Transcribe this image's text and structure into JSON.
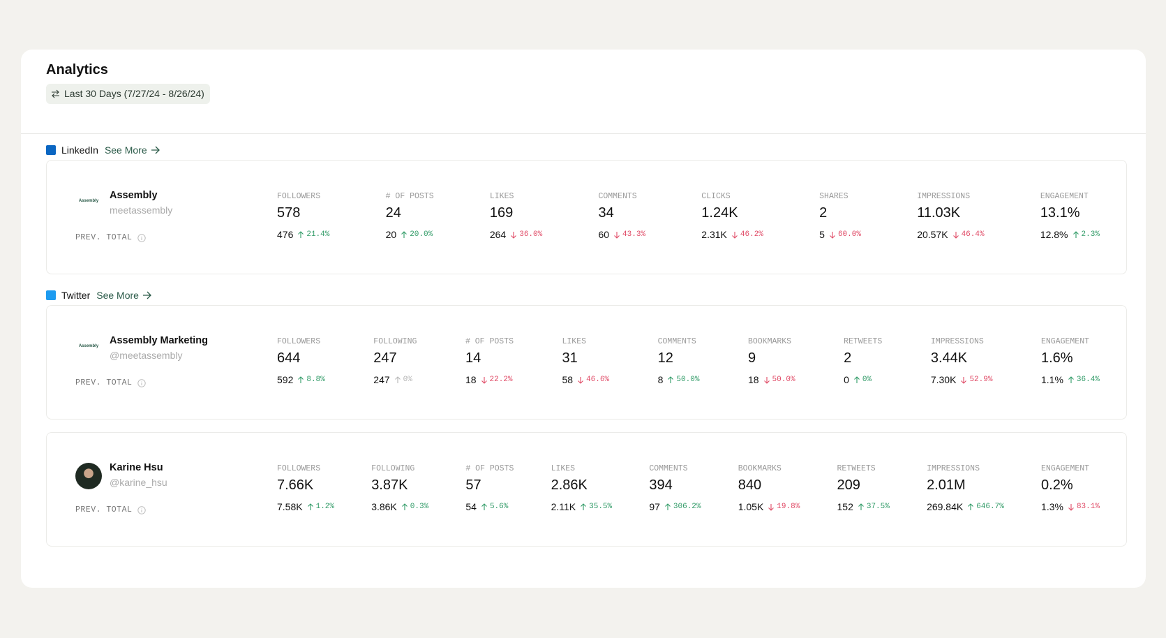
{
  "header": {
    "title": "Analytics",
    "date_range": "Last 30 Days (7/27/24 - 8/26/24)"
  },
  "sections": [
    {
      "platform": "LinkedIn",
      "link": "See More",
      "accounts": [
        {
          "name": "Assembly",
          "handle": "meetassembly",
          "logo": "Assembly",
          "prev_label": "PREV. TOTAL",
          "metrics": [
            {
              "label": "FOLLOWERS",
              "value": "578",
              "prev": "476",
              "change": "21.4%",
              "trend": "up"
            },
            {
              "label": "# OF POSTS",
              "value": "24",
              "prev": "20",
              "change": "20.0%",
              "trend": "up"
            },
            {
              "label": "LIKES",
              "value": "169",
              "prev": "264",
              "change": "36.0%",
              "trend": "down"
            },
            {
              "label": "COMMENTS",
              "value": "34",
              "prev": "60",
              "change": "43.3%",
              "trend": "down"
            },
            {
              "label": "CLICKS",
              "value": "1.24K",
              "prev": "2.31K",
              "change": "46.2%",
              "trend": "down"
            },
            {
              "label": "SHARES",
              "value": "2",
              "prev": "5",
              "change": "60.0%",
              "trend": "down"
            },
            {
              "label": "IMPRESSIONS",
              "value": "11.03K",
              "prev": "20.57K",
              "change": "46.4%",
              "trend": "down"
            },
            {
              "label": "ENGAGEMENT",
              "value": "13.1%",
              "prev": "12.8%",
              "change": "2.3%",
              "trend": "up"
            }
          ]
        }
      ]
    },
    {
      "platform": "Twitter",
      "link": "See More",
      "accounts": [
        {
          "name": "Assembly Marketing",
          "handle": "@meetassembly",
          "logo": "Assembly",
          "prev_label": "PREV. TOTAL",
          "metrics": [
            {
              "label": "FOLLOWERS",
              "value": "644",
              "prev": "592",
              "change": "8.8%",
              "trend": "up"
            },
            {
              "label": "FOLLOWING",
              "value": "247",
              "prev": "247",
              "change": "0%",
              "trend": "flat"
            },
            {
              "label": "# OF POSTS",
              "value": "14",
              "prev": "18",
              "change": "22.2%",
              "trend": "down"
            },
            {
              "label": "LIKES",
              "value": "31",
              "prev": "58",
              "change": "46.6%",
              "trend": "down"
            },
            {
              "label": "COMMENTS",
              "value": "12",
              "prev": "8",
              "change": "50.0%",
              "trend": "up"
            },
            {
              "label": "BOOKMARKS",
              "value": "9",
              "prev": "18",
              "change": "50.0%",
              "trend": "down"
            },
            {
              "label": "RETWEETS",
              "value": "2",
              "prev": "0",
              "change": "0%",
              "trend": "up"
            },
            {
              "label": "IMPRESSIONS",
              "value": "3.44K",
              "prev": "7.30K",
              "change": "52.9%",
              "trend": "down"
            },
            {
              "label": "ENGAGEMENT",
              "value": "1.6%",
              "prev": "1.1%",
              "change": "36.4%",
              "trend": "up"
            }
          ]
        },
        {
          "name": "Karine Hsu",
          "handle": "@karine_hsu",
          "prev_label": "PREV. TOTAL",
          "metrics": [
            {
              "label": "FOLLOWERS",
              "value": "7.66K",
              "prev": "7.58K",
              "change": "1.2%",
              "trend": "up"
            },
            {
              "label": "FOLLOWING",
              "value": "3.87K",
              "prev": "3.86K",
              "change": "0.3%",
              "trend": "up"
            },
            {
              "label": "# OF POSTS",
              "value": "57",
              "prev": "54",
              "change": "5.6%",
              "trend": "up"
            },
            {
              "label": "LIKES",
              "value": "2.86K",
              "prev": "2.11K",
              "change": "35.5%",
              "trend": "up"
            },
            {
              "label": "COMMENTS",
              "value": "394",
              "prev": "97",
              "change": "306.2%",
              "trend": "up"
            },
            {
              "label": "BOOKMARKS",
              "value": "840",
              "prev": "1.05K",
              "change": "19.8%",
              "trend": "down"
            },
            {
              "label": "RETWEETS",
              "value": "209",
              "prev": "152",
              "change": "37.5%",
              "trend": "up"
            },
            {
              "label": "IMPRESSIONS",
              "value": "2.01M",
              "prev": "269.84K",
              "change": "646.7%",
              "trend": "up"
            },
            {
              "label": "ENGAGEMENT",
              "value": "0.2%",
              "prev": "1.3%",
              "change": "83.1%",
              "trend": "down"
            }
          ]
        }
      ]
    }
  ]
}
